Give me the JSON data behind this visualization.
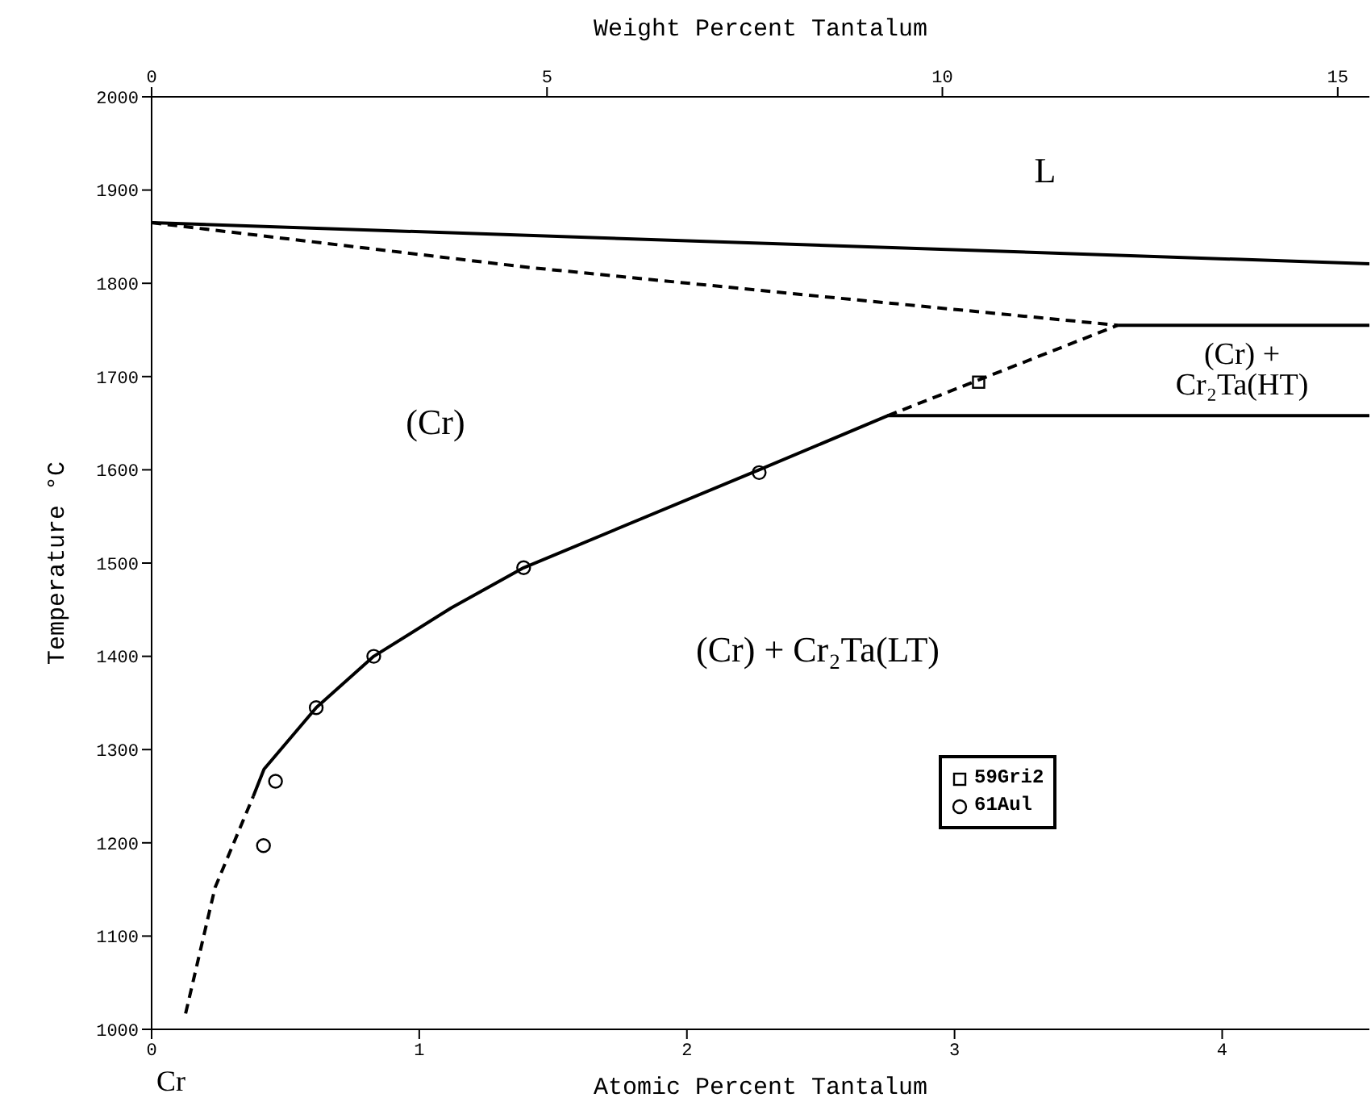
{
  "chart_data": {
    "type": "line",
    "xlabel": "Atomic Percent Tantalum",
    "ylabel": "Temperature °C",
    "x2label": "Weight Percent Tantalum",
    "xlim": [
      0,
      4.55
    ],
    "xticks": [
      0,
      1,
      2,
      3,
      4
    ],
    "x2lim": [
      0,
      15.4
    ],
    "x2ticks": [
      0,
      5,
      10,
      15
    ],
    "ylim": [
      1000,
      2000
    ],
    "yticks": [
      1000,
      1100,
      1200,
      1300,
      1400,
      1500,
      1600,
      1700,
      1800,
      1900,
      2000
    ],
    "grid": false,
    "legend": "bottom right",
    "series": [
      {
        "line_style": "solid",
        "color": "#000000",
        "x": [
          0,
          4.55
        ],
        "values": [
          1865,
          1821
        ]
      },
      {
        "line_style": "dashed",
        "color": "#000000",
        "x": [
          0,
          1.41,
          2.57,
          3.61
        ],
        "values": [
          1865,
          1817,
          1784,
          1755
        ]
      },
      {
        "line_style": "solid",
        "color": "#000000",
        "x": [
          3.61,
          4.55
        ],
        "values": [
          1755,
          1755
        ]
      },
      {
        "line_style": "dashed",
        "color": "#000000",
        "x": [
          2.75,
          3.61
        ],
        "values": [
          1658,
          1755
        ]
      },
      {
        "line_style": "solid",
        "color": "#000000",
        "x": [
          0.38,
          0.42,
          0.615,
          0.83,
          1.12,
          1.39,
          2.27,
          2.75,
          4.55
        ],
        "values": [
          1250,
          1279,
          1345,
          1400,
          1452,
          1495,
          1600,
          1658,
          1658
        ]
      },
      {
        "line_style": "dashed",
        "color": "#000000",
        "x": [
          0.127,
          0.237,
          0.38
        ],
        "values": [
          1017,
          1152,
          1250
        ]
      },
      {
        "type": "scatter",
        "name": "59Gri2",
        "marker": "square",
        "color": "#000000",
        "x": [
          3.09
        ],
        "values": [
          1694
        ]
      },
      {
        "type": "scatter",
        "name": "61Aul",
        "marker": "circle",
        "color": "#000000",
        "x": [
          0.418,
          0.463,
          0.615,
          0.83,
          1.39,
          2.27
        ],
        "values": [
          1197,
          1266,
          1345,
          1400,
          1495,
          1597
        ]
      }
    ],
    "annotations": [
      "L",
      "(Cr)",
      "(Cr) +\nCr₂Ta(HT)",
      "(Cr) + Cr₂Ta(LT)",
      "Cr"
    ]
  }
}
